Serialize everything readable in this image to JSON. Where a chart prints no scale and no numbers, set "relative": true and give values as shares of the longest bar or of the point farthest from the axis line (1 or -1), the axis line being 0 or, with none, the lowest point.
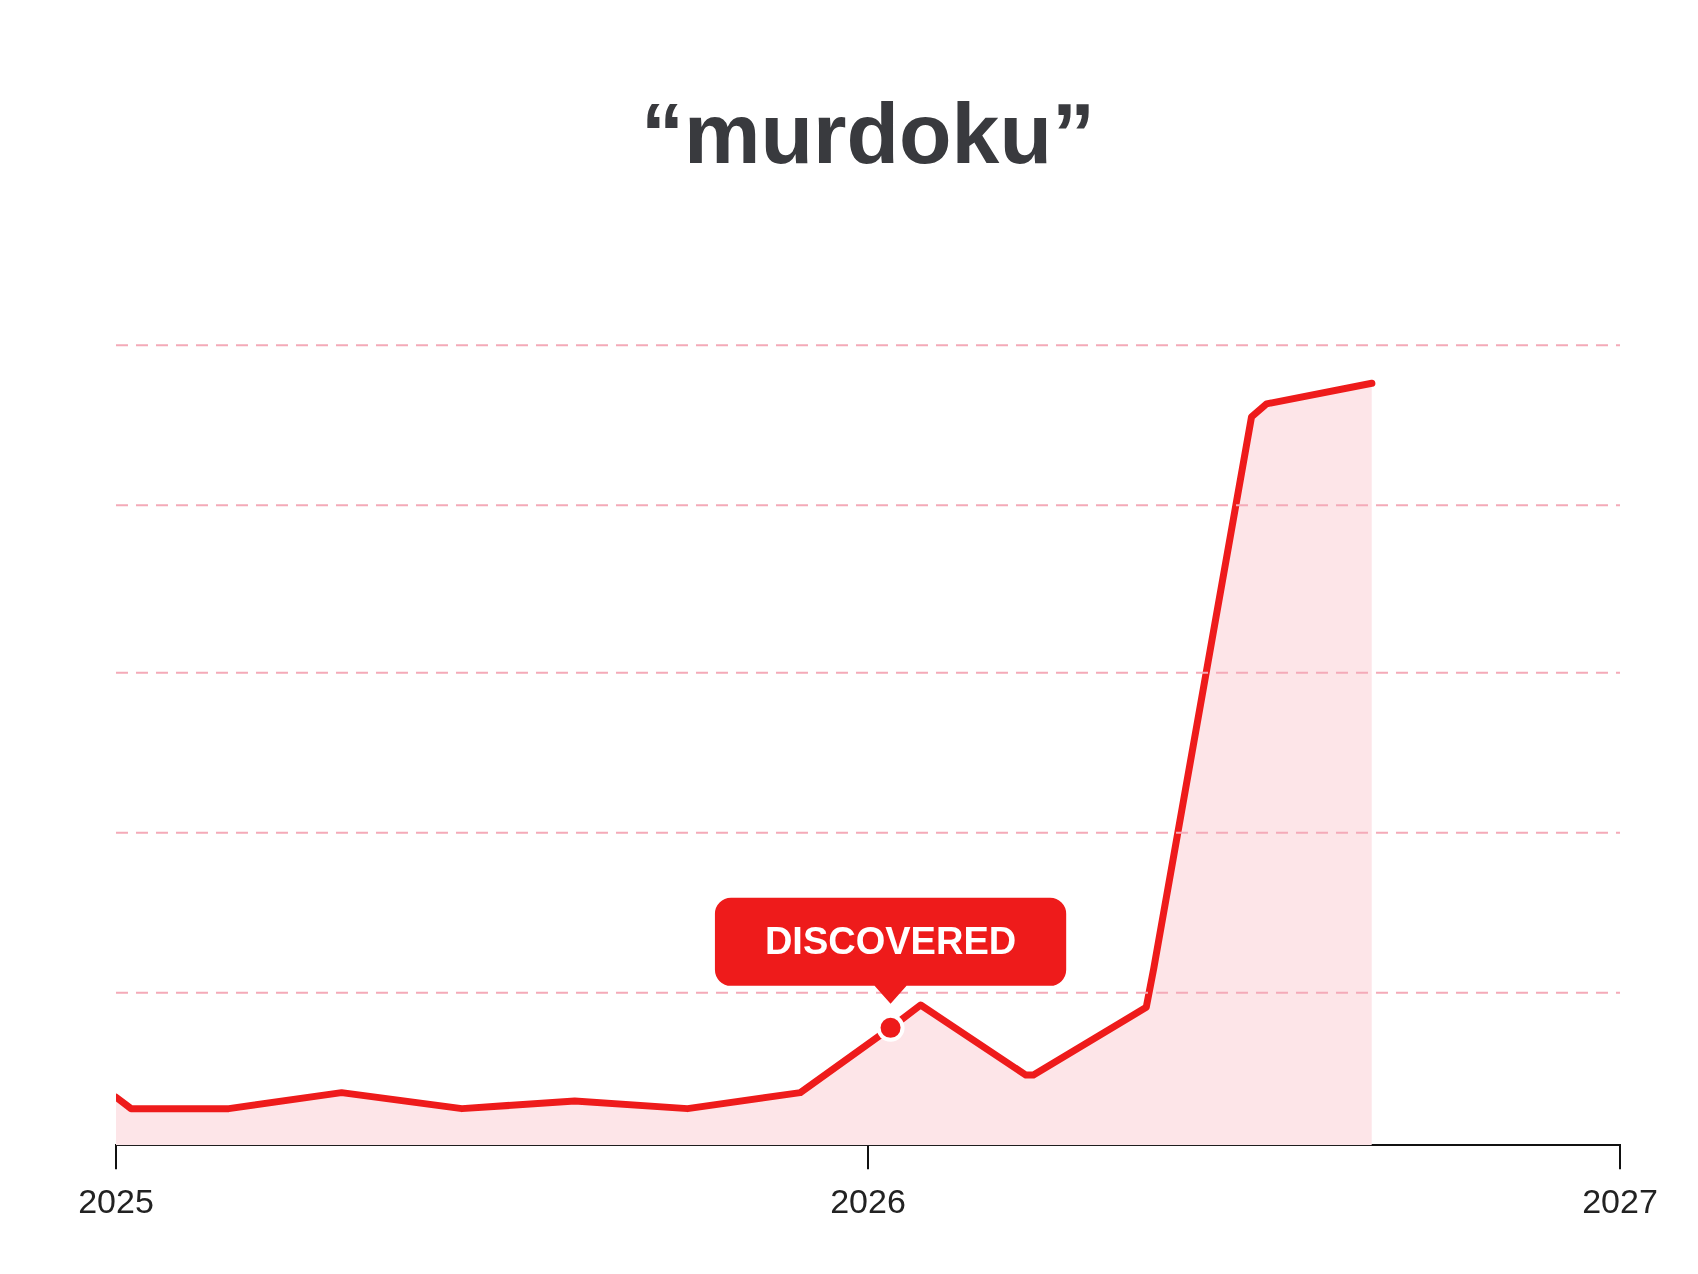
{
  "chart_data": {
    "type": "area",
    "title": "“murdoku”",
    "relative": true,
    "x": [
      2025.0,
      2025.02,
      2025.15,
      2025.3,
      2025.46,
      2025.61,
      2025.76,
      2025.91,
      2026.03,
      2026.07,
      2026.21,
      2026.22,
      2026.37,
      2026.38,
      2026.51,
      2026.53,
      2026.67
    ],
    "series": [
      {
        "color": "#ee1b1b",
        "values": [
          0.063,
          0.048,
          0.048,
          0.069,
          0.048,
          0.058,
          0.048,
          0.069,
          0.154,
          0.184,
          0.092,
          0.092,
          0.181,
          0.232,
          0.956,
          0.973,
          1
        ]
      }
    ],
    "xlim": [
      2025,
      2027
    ],
    "xticks": [
      2025,
      2026,
      2027
    ],
    "legend": false,
    "marker": "none",
    "line_style": "solid",
    "ref_lines": [
      {
        "axis": "y",
        "value": 0.2,
        "color": "#f4aab8",
        "line_style": "dashed"
      },
      {
        "axis": "y",
        "value": 0.41,
        "color": "#f4aab8",
        "line_style": "dashed"
      },
      {
        "axis": "y",
        "value": 0.62,
        "color": "#f4aab8",
        "line_style": "dashed"
      },
      {
        "axis": "y",
        "value": 0.84,
        "color": "#f4aab8",
        "line_style": "dashed"
      },
      {
        "axis": "y",
        "value": 1.05,
        "color": "#f4aab8",
        "line_style": "dashed"
      }
    ],
    "annotations": [
      {
        "text": "DISCOVERED",
        "x": 2026.03,
        "y": 0.154
      }
    ]
  }
}
